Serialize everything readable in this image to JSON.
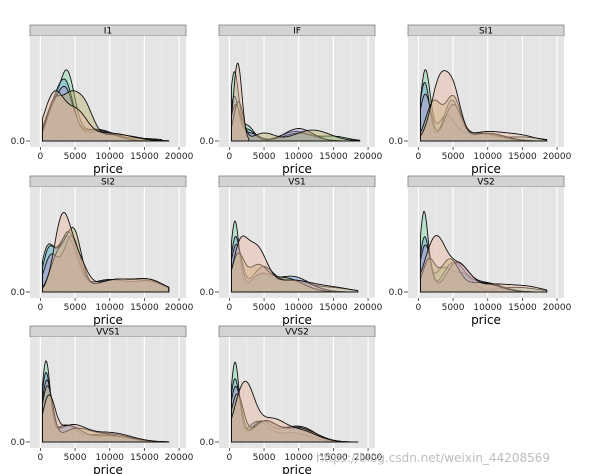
{
  "chart_data": {
    "type": "area",
    "facet_titles": [
      "I1",
      "IF",
      "SI1",
      "SI2",
      "VS1",
      "VS2",
      "VVS1",
      "VVS2"
    ],
    "x_ticks": [
      0,
      5000,
      10000,
      15000,
      20000
    ],
    "x_tick_labels": [
      "0",
      "5000",
      "10000",
      "15000",
      "20000"
    ],
    "y_tick_label": "0.0",
    "xlabel": "price",
    "xlim": [
      -1500,
      21000
    ],
    "grid": true,
    "group_colors": [
      "#e8b9a0",
      "#b9b06c",
      "#7fd6a6",
      "#6fa8d8",
      "#b090c8"
    ],
    "facets": [
      {
        "title": "I1",
        "curves": [
          {
            "color": "#7fd6a6",
            "peaks": [
              [
                1500,
                0.35,
                1000
              ],
              [
                3800,
                0.85,
                1100
              ],
              [
                8000,
                0.15,
                2500
              ],
              [
                15000,
                0.03,
                2500
              ]
            ],
            "xmax": 17500
          },
          {
            "color": "#6fa8d8",
            "peaks": [
              [
                1600,
                0.25,
                900
              ],
              [
                3500,
                0.75,
                1200
              ],
              [
                8500,
                0.12,
                2500
              ]
            ],
            "xmax": 18000
          },
          {
            "color": "#b090c8",
            "peaks": [
              [
                1500,
                0.25,
                900
              ],
              [
                3500,
                0.65,
                1200
              ],
              [
                8000,
                0.14,
                2500
              ]
            ],
            "xmax": 18500
          },
          {
            "color": "#b9b06c",
            "peaks": [
              [
                1800,
                0.4,
                1000
              ],
              [
                4200,
                0.55,
                1400
              ],
              [
                6500,
                0.35,
                1200
              ],
              [
                11000,
                0.08,
                3000
              ]
            ],
            "xmax": 18500
          },
          {
            "color": "#e8b9a0",
            "peaks": [
              [
                2000,
                0.6,
                1400
              ],
              [
                5200,
                0.35,
                1500
              ],
              [
                10000,
                0.1,
                3000
              ]
            ],
            "xmax": 18500
          }
        ]
      },
      {
        "title": "IF",
        "curves": [
          {
            "color": "#7fd6a6",
            "peaks": [
              [
                700,
                0.85,
                600
              ],
              [
                2500,
                0.2,
                1000
              ],
              [
                9500,
                0.12,
                2000
              ],
              [
                15000,
                0.06,
                2000
              ]
            ],
            "xmax": 18800
          },
          {
            "color": "#6fa8d8",
            "peaks": [
              [
                700,
                0.55,
                600
              ],
              [
                2600,
                0.15,
                1000
              ],
              [
                10000,
                0.1,
                2200
              ]
            ],
            "xmax": 18800
          },
          {
            "color": "#b090c8",
            "peaks": [
              [
                900,
                0.45,
                700
              ],
              [
                3000,
                0.1,
                1200
              ],
              [
                10000,
                0.16,
                2000
              ]
            ],
            "xmax": 18800
          },
          {
            "color": "#b9b06c",
            "peaks": [
              [
                1300,
                0.5,
                700
              ],
              [
                5000,
                0.1,
                1500
              ],
              [
                12000,
                0.14,
                2500
              ]
            ],
            "xmax": 18800
          },
          {
            "color": "#e8b9a0",
            "peaks": [
              [
                1200,
                1.0,
                600
              ]
            ],
            "xmax": 2800
          }
        ]
      },
      {
        "title": "SI1",
        "curves": [
          {
            "color": "#7fd6a6",
            "peaks": [
              [
                1000,
                0.9,
                700
              ],
              [
                4000,
                0.3,
                1200
              ],
              [
                8000,
                0.1,
                2500
              ],
              [
                15000,
                0.05,
                2500
              ]
            ],
            "xmax": 18500
          },
          {
            "color": "#6fa8d8",
            "peaks": [
              [
                900,
                0.75,
                700
              ],
              [
                4800,
                0.5,
                1100
              ],
              [
                9000,
                0.1,
                2500
              ]
            ],
            "xmax": 18500
          },
          {
            "color": "#b090c8",
            "peaks": [
              [
                1000,
                0.6,
                800
              ],
              [
                5000,
                0.45,
                1200
              ],
              [
                9500,
                0.1,
                2500
              ]
            ],
            "xmax": 18500
          },
          {
            "color": "#b9b06c",
            "peaks": [
              [
                2200,
                0.5,
                1100
              ],
              [
                5000,
                0.55,
                1100
              ],
              [
                10000,
                0.1,
                2500
              ]
            ],
            "xmax": 18500
          },
          {
            "color": "#e8b9a0",
            "peaks": [
              [
                3200,
                0.8,
                1300
              ],
              [
                5200,
                0.45,
                1000
              ],
              [
                10000,
                0.12,
                3000
              ],
              [
                15000,
                0.05,
                2000
              ]
            ],
            "xmax": 18500
          }
        ]
      },
      {
        "title": "SI2",
        "curves": [
          {
            "color": "#7fd6a6",
            "peaks": [
              [
                1000,
                0.5,
                900
              ],
              [
                3800,
                0.7,
                1400
              ],
              [
                10000,
                0.15,
                3000
              ],
              [
                16000,
                0.12,
                2000
              ]
            ],
            "xmax": 18500
          },
          {
            "color": "#6fa8d8",
            "peaks": [
              [
                1200,
                0.5,
                900
              ],
              [
                4000,
                0.75,
                1300
              ],
              [
                10000,
                0.16,
                3000
              ],
              [
                16000,
                0.12,
                2000
              ]
            ],
            "xmax": 18500
          },
          {
            "color": "#b090c8",
            "peaks": [
              [
                1500,
                0.45,
                1000
              ],
              [
                4500,
                0.7,
                1200
              ],
              [
                11000,
                0.16,
                3000
              ],
              [
                16000,
                0.1,
                2000
              ]
            ],
            "xmax": 18500
          },
          {
            "color": "#b9b06c",
            "peaks": [
              [
                2500,
                0.45,
                1100
              ],
              [
                4800,
                0.75,
                1100
              ],
              [
                11000,
                0.16,
                3000
              ],
              [
                16000,
                0.12,
                2000
              ]
            ],
            "xmax": 18500
          },
          {
            "color": "#e8b9a0",
            "peaks": [
              [
                3200,
                0.95,
                1200
              ],
              [
                5500,
                0.35,
                1200
              ],
              [
                11000,
                0.16,
                3000
              ],
              [
                16000,
                0.12,
                2000
              ]
            ],
            "xmax": 18500
          }
        ]
      },
      {
        "title": "VS1",
        "curves": [
          {
            "color": "#7fd6a6",
            "peaks": [
              [
                800,
                0.9,
                600
              ],
              [
                4500,
                0.2,
                1500
              ],
              [
                9000,
                0.15,
                2500
              ],
              [
                15000,
                0.05,
                2500
              ]
            ],
            "xmax": 18500
          },
          {
            "color": "#6fa8d8",
            "peaks": [
              [
                900,
                0.7,
                700
              ],
              [
                4500,
                0.2,
                1500
              ],
              [
                9000,
                0.2,
                2500
              ]
            ],
            "xmax": 18500
          },
          {
            "color": "#b090c8",
            "peaks": [
              [
                1000,
                0.6,
                800
              ],
              [
                4800,
                0.3,
                1500
              ],
              [
                9500,
                0.15,
                2500
              ]
            ],
            "xmax": 18500
          },
          {
            "color": "#b9b06c",
            "peaks": [
              [
                1200,
                0.45,
                900
              ],
              [
                4000,
                0.3,
                1400
              ],
              [
                8000,
                0.18,
                2500
              ]
            ],
            "xmax": 18500
          },
          {
            "color": "#e8b9a0",
            "peaks": [
              [
                1500,
                0.5,
                1000
              ],
              [
                3800,
                0.55,
                1500
              ],
              [
                9000,
                0.15,
                3000
              ],
              [
                15000,
                0.05,
                2500
              ]
            ],
            "xmax": 18500
          }
        ]
      },
      {
        "title": "VS2",
        "curves": [
          {
            "color": "#7fd6a6",
            "peaks": [
              [
                800,
                1.0,
                600
              ],
              [
                3500,
                0.3,
                1300
              ],
              [
                6500,
                0.22,
                1300
              ],
              [
                14000,
                0.06,
                3000
              ]
            ],
            "xmax": 18500
          },
          {
            "color": "#6fa8d8",
            "peaks": [
              [
                900,
                0.7,
                700
              ],
              [
                5000,
                0.35,
                1500
              ],
              [
                9000,
                0.12,
                2500
              ]
            ],
            "xmax": 18500
          },
          {
            "color": "#b090c8",
            "peaks": [
              [
                1000,
                0.6,
                800
              ],
              [
                5500,
                0.35,
                1500
              ],
              [
                9500,
                0.12,
                2500
              ]
            ],
            "xmax": 18500
          },
          {
            "color": "#b9b06c",
            "peaks": [
              [
                1500,
                0.4,
                900
              ],
              [
                4500,
                0.4,
                1300
              ],
              [
                9000,
                0.12,
                2500
              ]
            ],
            "xmax": 18500
          },
          {
            "color": "#e8b9a0",
            "peaks": [
              [
                2500,
                0.7,
                1500
              ],
              [
                6000,
                0.3,
                1500
              ],
              [
                11000,
                0.1,
                3000
              ],
              [
                16000,
                0.05,
                2000
              ]
            ],
            "xmax": 18500
          }
        ]
      },
      {
        "title": "VVS1",
        "curves": [
          {
            "color": "#7fd6a6",
            "peaks": [
              [
                800,
                1.0,
                600
              ],
              [
                3500,
                0.2,
                1500
              ],
              [
                9000,
                0.1,
                3000
              ]
            ],
            "xmax": 18500
          },
          {
            "color": "#6fa8d8",
            "peaks": [
              [
                800,
                0.85,
                650
              ],
              [
                4000,
                0.2,
                1800
              ],
              [
                10000,
                0.08,
                3000
              ]
            ],
            "xmax": 18500
          },
          {
            "color": "#b090c8",
            "peaks": [
              [
                900,
                0.75,
                700
              ],
              [
                4000,
                0.2,
                1800
              ],
              [
                10000,
                0.08,
                3000
              ]
            ],
            "xmax": 18500
          },
          {
            "color": "#b9b06c",
            "peaks": [
              [
                1000,
                0.7,
                800
              ],
              [
                5000,
                0.15,
                2000
              ],
              [
                10000,
                0.1,
                3000
              ]
            ],
            "xmax": 18500
          },
          {
            "color": "#e8b9a0",
            "peaks": [
              [
                1200,
                0.55,
                900
              ],
              [
                4500,
                0.2,
                2000
              ],
              [
                10000,
                0.12,
                3000
              ]
            ],
            "xmax": 18500
          }
        ]
      },
      {
        "title": "VVS2",
        "curves": [
          {
            "color": "#7fd6a6",
            "peaks": [
              [
                800,
                1.0,
                600
              ],
              [
                4000,
                0.25,
                1500
              ],
              [
                9000,
                0.12,
                2500
              ]
            ],
            "xmax": 18500
          },
          {
            "color": "#6fa8d8",
            "peaks": [
              [
                800,
                0.8,
                700
              ],
              [
                4500,
                0.25,
                1500
              ],
              [
                9500,
                0.2,
                2300
              ]
            ],
            "xmax": 18500
          },
          {
            "color": "#b090c8",
            "peaks": [
              [
                900,
                0.7,
                800
              ],
              [
                5000,
                0.25,
                1700
              ],
              [
                10000,
                0.2,
                2300
              ]
            ],
            "xmax": 18500
          },
          {
            "color": "#b9b06c",
            "peaks": [
              [
                1100,
                0.6,
                900
              ],
              [
                5000,
                0.25,
                1700
              ],
              [
                10000,
                0.18,
                2500
              ]
            ],
            "xmax": 18500
          },
          {
            "color": "#e8b9a0",
            "peaks": [
              [
                2200,
                0.75,
                1400
              ],
              [
                6000,
                0.25,
                1800
              ],
              [
                10000,
                0.15,
                2500
              ]
            ],
            "xmax": 18500
          }
        ]
      }
    ]
  },
  "watermark": "https://blog.csdn.net/weixin_44208569"
}
